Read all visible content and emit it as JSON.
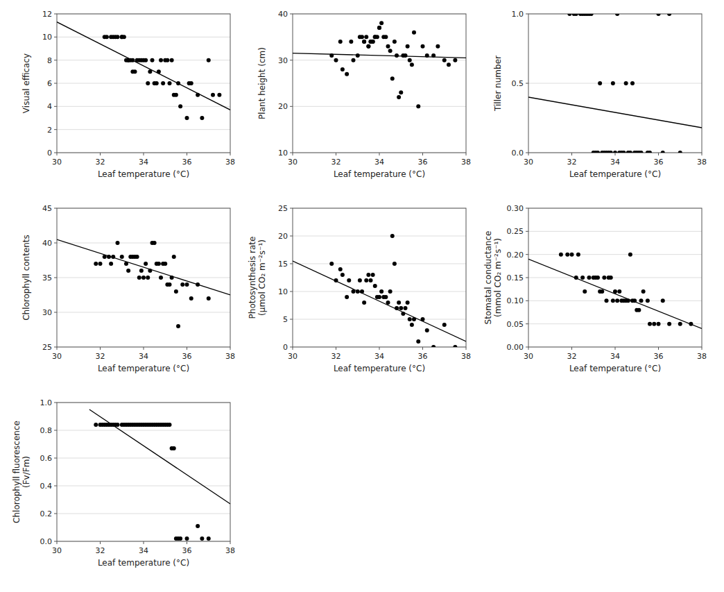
{
  "chart_data": [
    {
      "type": "scatter",
      "xlabel": "Leaf temperature (°C)",
      "ylabel": "Visual efficacy",
      "xlim": [
        30,
        38
      ],
      "xticks": [
        30,
        32,
        34,
        36,
        38
      ],
      "ylim": [
        0,
        12
      ],
      "yticks": [
        0,
        2,
        4,
        6,
        8,
        10,
        12
      ],
      "grid": true,
      "series": [
        {
          "type": "scatter",
          "color": "black",
          "x": [
            32.2,
            32.3,
            32.5,
            32.6,
            32.7,
            32.8,
            33.0,
            33.0,
            33.1,
            33.2,
            33.3,
            33.3,
            33.4,
            33.5,
            33.5,
            33.6,
            33.7,
            33.8,
            33.9,
            34.0,
            34.1,
            34.2,
            34.3,
            34.4,
            34.5,
            34.6,
            34.7,
            34.8,
            34.9,
            35.0,
            35.1,
            35.2,
            35.3,
            35.4,
            35.5,
            35.6,
            35.7,
            36.0,
            36.1,
            36.2,
            36.5,
            36.7,
            37.0,
            37.2,
            37.5
          ],
          "values": [
            10,
            10,
            10,
            10,
            10,
            10,
            10,
            10,
            10,
            8,
            8,
            8,
            8,
            7,
            8,
            7,
            8,
            8,
            8,
            8,
            8,
            6,
            7,
            8,
            6,
            6,
            7,
            8,
            6,
            8,
            8,
            6,
            8,
            5,
            5,
            6,
            4,
            3,
            6,
            6,
            5,
            3,
            8,
            5,
            5
          ]
        },
        {
          "type": "line",
          "color": "black",
          "x": [
            30,
            38
          ],
          "values": [
            11.3,
            3.7
          ]
        }
      ]
    },
    {
      "type": "scatter",
      "xlabel": "Leaf temperature (°C)",
      "ylabel": "Plant height (cm)",
      "xlim": [
        30,
        38
      ],
      "xticks": [
        30,
        32,
        34,
        36,
        38
      ],
      "ylim": [
        10,
        40
      ],
      "yticks": [
        10,
        20,
        30,
        40
      ],
      "grid": true,
      "series": [
        {
          "type": "scatter",
          "color": "black",
          "x": [
            31.8,
            32.0,
            32.2,
            32.3,
            32.5,
            32.7,
            32.8,
            33.0,
            33.1,
            33.2,
            33.3,
            33.3,
            33.4,
            33.5,
            33.5,
            33.6,
            33.6,
            33.7,
            33.7,
            33.8,
            33.8,
            33.9,
            34.0,
            34.0,
            34.1,
            34.2,
            34.3,
            34.4,
            34.5,
            34.6,
            34.7,
            34.8,
            34.9,
            35.0,
            35.1,
            35.2,
            35.3,
            35.4,
            35.5,
            35.6,
            35.8,
            36.0,
            36.2,
            36.5,
            36.7,
            37.0,
            37.2,
            37.5
          ],
          "values": [
            31,
            30,
            34,
            28,
            27,
            34,
            30,
            31,
            35,
            35,
            34,
            34,
            35,
            33,
            33,
            34,
            34,
            34,
            34,
            35,
            35,
            35,
            37,
            37,
            38,
            35,
            35,
            33,
            32,
            26,
            34,
            31,
            22,
            23,
            31,
            31,
            33,
            30,
            29,
            36,
            20,
            33,
            31,
            31,
            33,
            30,
            29,
            30
          ]
        },
        {
          "type": "line",
          "color": "black",
          "x": [
            30,
            38
          ],
          "values": [
            31.5,
            30.5
          ]
        }
      ]
    },
    {
      "type": "scatter",
      "xlabel": "Leaf temperature (°C)",
      "ylabel": "Tiller number",
      "xlim": [
        30,
        38
      ],
      "xticks": [
        30,
        32,
        34,
        36,
        38
      ],
      "ylim": [
        0,
        1
      ],
      "yticks": [
        {
          "value": 0,
          "label": "0.0"
        },
        0.5,
        {
          "value": 1,
          "label": "1.0"
        }
      ],
      "grid": true,
      "series": [
        {
          "type": "scatter",
          "color": "black",
          "x": [
            31.9,
            32.1,
            32.2,
            32.4,
            32.5,
            32.6,
            32.7,
            32.8,
            32.9,
            33.0,
            33.1,
            33.2,
            33.3,
            33.4,
            33.5,
            33.6,
            33.7,
            33.8,
            33.9,
            34.0,
            34.1,
            34.2,
            34.3,
            34.4,
            34.5,
            34.6,
            34.7,
            34.8,
            34.9,
            35.0,
            35.1,
            35.2,
            35.5,
            35.6,
            36.0,
            36.2,
            36.5,
            37.0
          ],
          "values": [
            1,
            1,
            1,
            1,
            1,
            1,
            1,
            1,
            1,
            0,
            0,
            0,
            0.5,
            0,
            0,
            0,
            0,
            0,
            0.5,
            0,
            1,
            0,
            0,
            0,
            0.5,
            0,
            0,
            0.5,
            0,
            0,
            0,
            0,
            0,
            0,
            1,
            0,
            1,
            0
          ]
        },
        {
          "type": "line",
          "color": "black",
          "x": [
            30,
            38
          ],
          "values": [
            0.4,
            0.18
          ]
        }
      ]
    },
    {
      "type": "scatter",
      "xlabel": "Leaf temperature (°C)",
      "ylabel": "Chlorophyll contents",
      "xlim": [
        30,
        38
      ],
      "xticks": [
        30,
        32,
        34,
        36,
        38
      ],
      "ylim": [
        25,
        45
      ],
      "yticks": [
        25,
        30,
        35,
        40,
        45
      ],
      "grid": true,
      "series": [
        {
          "type": "scatter",
          "color": "black",
          "x": [
            31.8,
            32.0,
            32.2,
            32.4,
            32.5,
            32.6,
            32.8,
            33.0,
            33.2,
            33.3,
            33.4,
            33.5,
            33.6,
            33.7,
            33.8,
            33.9,
            34.0,
            34.1,
            34.2,
            34.3,
            34.4,
            34.5,
            34.6,
            34.7,
            34.8,
            34.9,
            35.0,
            35.1,
            35.2,
            35.3,
            35.4,
            35.5,
            35.6,
            35.8,
            36.0,
            36.2,
            36.5,
            37.0
          ],
          "values": [
            37,
            37,
            38,
            38,
            37,
            38,
            40,
            38,
            37,
            36,
            38,
            38,
            38,
            38,
            35,
            36,
            35,
            37,
            35,
            36,
            40,
            40,
            37,
            37,
            35,
            37,
            37,
            34,
            34,
            35,
            38,
            33,
            28,
            34,
            34,
            32,
            34,
            32
          ]
        },
        {
          "type": "line",
          "color": "black",
          "x": [
            30,
            38
          ],
          "values": [
            40.5,
            32.5
          ]
        }
      ]
    },
    {
      "type": "scatter",
      "xlabel": "Leaf temperature (°C)",
      "ylabel": "Photosynthesis rate\n(μmol CO₂ m⁻²s⁻¹)",
      "xlim": [
        30,
        38
      ],
      "xticks": [
        30,
        32,
        34,
        36,
        38
      ],
      "ylim": [
        0,
        25
      ],
      "yticks": [
        0,
        5,
        10,
        15,
        20,
        25
      ],
      "grid": true,
      "series": [
        {
          "type": "scatter",
          "color": "black",
          "x": [
            31.8,
            32.0,
            32.2,
            32.3,
            32.5,
            32.6,
            32.8,
            33.0,
            33.1,
            33.2,
            33.3,
            33.4,
            33.5,
            33.6,
            33.7,
            33.8,
            33.9,
            34.0,
            34.1,
            34.2,
            34.3,
            34.4,
            34.5,
            34.6,
            34.7,
            34.8,
            34.9,
            35.0,
            35.1,
            35.2,
            35.3,
            35.4,
            35.5,
            35.6,
            35.8,
            36.0,
            36.2,
            36.5,
            37.0,
            37.5
          ],
          "values": [
            15,
            12,
            14,
            13,
            9,
            12,
            10,
            10,
            12,
            10,
            8,
            12,
            13,
            12,
            13,
            11,
            9,
            9,
            10,
            9,
            9,
            8,
            10,
            20,
            15,
            7,
            8,
            7,
            6,
            7,
            8,
            5,
            4,
            5,
            1,
            5,
            3,
            0,
            4,
            0
          ]
        },
        {
          "type": "line",
          "color": "black",
          "x": [
            30,
            38
          ],
          "values": [
            15.5,
            1.0
          ]
        }
      ]
    },
    {
      "type": "scatter",
      "xlabel": "Leaf temperature (°C)",
      "ylabel": "Stomatal conductance\n(mmol CO₂ m⁻²s⁻¹)",
      "xlim": [
        30,
        38
      ],
      "xticks": [
        30,
        32,
        34,
        36,
        38
      ],
      "ylim": [
        0,
        0.3
      ],
      "yticks": [
        {
          "value": 0,
          "label": "0.00"
        },
        0.05,
        {
          "value": 0.1,
          "label": "0.10"
        },
        0.15,
        {
          "value": 0.2,
          "label": "0.20"
        },
        0.25,
        {
          "value": 0.3,
          "label": "0.30"
        }
      ],
      "grid": true,
      "series": [
        {
          "type": "scatter",
          "color": "black",
          "x": [
            31.5,
            31.8,
            32.0,
            32.2,
            32.3,
            32.5,
            32.6,
            32.8,
            33.0,
            33.1,
            33.2,
            33.3,
            33.4,
            33.5,
            33.6,
            33.7,
            33.8,
            33.9,
            34.0,
            34.1,
            34.2,
            34.3,
            34.4,
            34.5,
            34.6,
            34.7,
            34.8,
            34.9,
            35.0,
            35.1,
            35.2,
            35.3,
            35.5,
            35.6,
            35.8,
            36.0,
            36.2,
            36.5,
            37.0,
            37.5
          ],
          "values": [
            0.2,
            0.2,
            0.2,
            0.15,
            0.2,
            0.15,
            0.12,
            0.15,
            0.15,
            0.15,
            0.15,
            0.12,
            0.12,
            0.15,
            0.1,
            0.15,
            0.15,
            0.1,
            0.12,
            0.1,
            0.12,
            0.1,
            0.1,
            0.1,
            0.1,
            0.2,
            0.1,
            0.1,
            0.08,
            0.08,
            0.1,
            0.12,
            0.1,
            0.05,
            0.05,
            0.05,
            0.1,
            0.05,
            0.05,
            0.05
          ]
        },
        {
          "type": "line",
          "color": "black",
          "x": [
            30,
            38
          ],
          "values": [
            0.19,
            0.04
          ]
        }
      ]
    },
    {
      "type": "scatter",
      "xlabel": "Leaf temperature (°C)",
      "ylabel": "Chlorophyll fluorescence\n(Fv/Fm)",
      "xlim": [
        30,
        38
      ],
      "xticks": [
        30,
        32,
        34,
        36,
        38
      ],
      "ylim": [
        0,
        1
      ],
      "yticks": [
        {
          "value": 0,
          "label": "0.0"
        },
        0.2,
        0.4,
        0.6,
        0.8,
        {
          "value": 1.0,
          "label": "1.0"
        }
      ],
      "grid": true,
      "series": [
        {
          "type": "scatter",
          "color": "black",
          "x": [
            31.8,
            32.0,
            32.1,
            32.2,
            32.3,
            32.4,
            32.5,
            32.6,
            32.7,
            32.8,
            33.0,
            33.1,
            33.2,
            33.3,
            33.4,
            33.5,
            33.6,
            33.7,
            33.8,
            33.9,
            34.0,
            34.1,
            34.2,
            34.3,
            34.4,
            34.5,
            34.6,
            34.7,
            34.8,
            34.9,
            35.0,
            35.1,
            35.2,
            35.3,
            35.4,
            35.5,
            35.6,
            35.7,
            36.0,
            36.5,
            36.7,
            37.0
          ],
          "values": [
            0.84,
            0.84,
            0.84,
            0.84,
            0.84,
            0.84,
            0.84,
            0.84,
            0.84,
            0.84,
            0.84,
            0.84,
            0.84,
            0.84,
            0.84,
            0.84,
            0.84,
            0.84,
            0.84,
            0.84,
            0.84,
            0.84,
            0.84,
            0.84,
            0.84,
            0.84,
            0.84,
            0.84,
            0.84,
            0.84,
            0.84,
            0.84,
            0.84,
            0.67,
            0.67,
            0.02,
            0.02,
            0.02,
            0.02,
            0.11,
            0.02,
            0.02
          ]
        },
        {
          "type": "line",
          "color": "black",
          "x": [
            31.5,
            38
          ],
          "values": [
            0.95,
            0.27
          ]
        }
      ]
    }
  ]
}
